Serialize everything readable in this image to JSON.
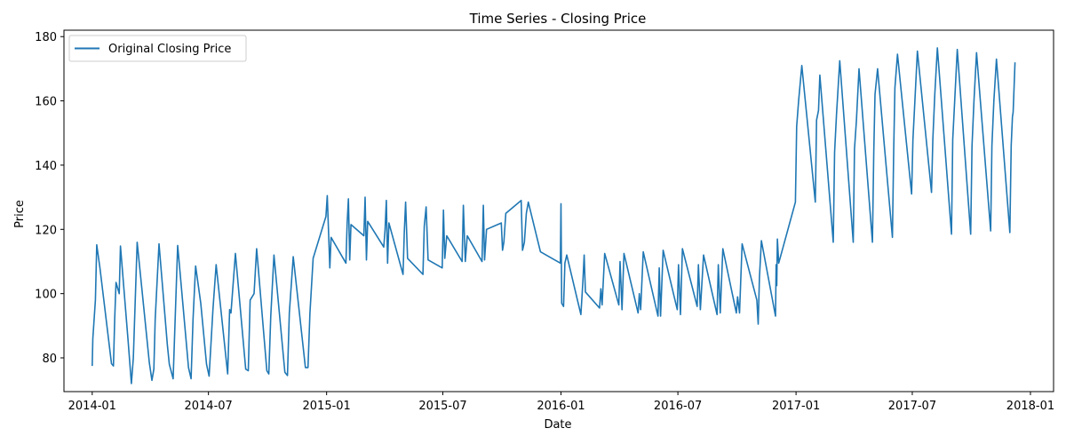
{
  "chart_data": {
    "type": "line",
    "title": "Time Series - Closing Price",
    "xlabel": "Date",
    "ylabel": "Price",
    "xlim": [
      "2013-11-18",
      "2018-02-06"
    ],
    "ylim": [
      69.5,
      182
    ],
    "x_ticks": [
      "2014-01",
      "2014-07",
      "2015-01",
      "2015-07",
      "2016-01",
      "2016-07",
      "2017-01",
      "2017-07",
      "2018-01"
    ],
    "y_ticks": [
      80,
      100,
      120,
      140,
      160,
      180
    ],
    "grid": false,
    "legend_position": "upper-left",
    "series": [
      {
        "name": "Original Closing Price",
        "color": "#1f77b4",
        "x": [
          "2014-01-01",
          "2014-01-02",
          "2014-01-06",
          "2014-01-08",
          "2014-01-13",
          "2014-01-31",
          "2014-02-03",
          "2014-02-05",
          "2014-02-07",
          "2014-02-12",
          "2014-02-14",
          "2014-02-26",
          "2014-03-03",
          "2014-03-06",
          "2014-03-12",
          "2014-03-31",
          "2014-04-04",
          "2014-04-07",
          "2014-04-09",
          "2014-04-15",
          "2014-04-28",
          "2014-05-01",
          "2014-05-07",
          "2014-05-14",
          "2014-05-31",
          "2014-06-04",
          "2014-06-07",
          "2014-06-11",
          "2014-06-19",
          "2014-06-28",
          "2014-07-02",
          "2014-07-08",
          "2014-07-13",
          "2014-07-31",
          "2014-08-03",
          "2014-08-05",
          "2014-08-12",
          "2014-08-28",
          "2014-09-01",
          "2014-09-04",
          "2014-09-10",
          "2014-09-14",
          "2014-09-30",
          "2014-10-03",
          "2014-10-06",
          "2014-10-11",
          "2014-10-28",
          "2014-11-01",
          "2014-11-04",
          "2014-11-10",
          "2014-11-29",
          "2014-12-03",
          "2014-12-06",
          "2014-12-11",
          "2014-12-31",
          "2015-01-02",
          "2015-01-06",
          "2015-01-08",
          "2015-01-31",
          "2015-02-02",
          "2015-02-04",
          "2015-02-06",
          "2015-02-08",
          "2015-02-28",
          "2015-03-02",
          "2015-03-04",
          "2015-03-06",
          "2015-03-31",
          "2015-04-02",
          "2015-04-04",
          "2015-04-06",
          "2015-04-08",
          "2015-04-30",
          "2015-05-02",
          "2015-05-04",
          "2015-05-07",
          "2015-05-31",
          "2015-06-02",
          "2015-06-05",
          "2015-06-08",
          "2015-06-30",
          "2015-07-02",
          "2015-07-04",
          "2015-07-07",
          "2015-07-31",
          "2015-08-02",
          "2015-08-05",
          "2015-08-08",
          "2015-08-31",
          "2015-09-02",
          "2015-09-04",
          "2015-09-07",
          "2015-09-30",
          "2015-10-02",
          "2015-10-04",
          "2015-10-07",
          "2015-10-31",
          "2015-11-02",
          "2015-11-05",
          "2015-11-08",
          "2015-11-11",
          "2015-11-30",
          "2015-12-31",
          "2016-01-01",
          "2016-01-02",
          "2016-01-05",
          "2016-01-07",
          "2016-01-10",
          "2016-02-01",
          "2016-02-04",
          "2016-02-06",
          "2016-02-08",
          "2016-03-01",
          "2016-03-03",
          "2016-03-05",
          "2016-03-09",
          "2016-03-31",
          "2016-04-02",
          "2016-04-05",
          "2016-04-08",
          "2016-04-30",
          "2016-05-02",
          "2016-05-04",
          "2016-05-08",
          "2016-05-31",
          "2016-06-02",
          "2016-06-04",
          "2016-06-08",
          "2016-06-30",
          "2016-07-02",
          "2016-07-05",
          "2016-07-08",
          "2016-07-31",
          "2016-08-02",
          "2016-08-05",
          "2016-08-10",
          "2016-08-31",
          "2016-09-02",
          "2016-09-05",
          "2016-09-09",
          "2016-09-30",
          "2016-10-02",
          "2016-10-05",
          "2016-10-09",
          "2016-11-01",
          "2016-11-03",
          "2016-11-05",
          "2016-11-08",
          "2016-11-30",
          "2016-12-01",
          "2016-12-02",
          "2016-12-03",
          "2016-12-05",
          "2016-12-31",
          "2017-01-02",
          "2017-01-05",
          "2017-01-10",
          "2017-01-31",
          "2017-02-02",
          "2017-02-05",
          "2017-02-07",
          "2017-02-28",
          "2017-03-02",
          "2017-03-05",
          "2017-03-10",
          "2017-03-31",
          "2017-04-02",
          "2017-04-05",
          "2017-04-09",
          "2017-04-30",
          "2017-05-02",
          "2017-05-04",
          "2017-05-08",
          "2017-05-31",
          "2017-06-02",
          "2017-06-04",
          "2017-06-08",
          "2017-06-30",
          "2017-07-02",
          "2017-07-05",
          "2017-07-09",
          "2017-07-31",
          "2017-08-02",
          "2017-08-05",
          "2017-08-09",
          "2017-08-31",
          "2017-09-02",
          "2017-09-05",
          "2017-09-09",
          "2017-09-30",
          "2017-10-02",
          "2017-10-05",
          "2017-10-09",
          "2017-10-31",
          "2017-11-02",
          "2017-11-05",
          "2017-11-09",
          "2017-11-30",
          "2017-12-02",
          "2017-12-04",
          "2017-12-05",
          "2017-12-08"
        ],
        "y": [
          77.5,
          86,
          98,
          115.2,
          108,
          78.2,
          77.5,
          92,
          103.5,
          100,
          114.8,
          85,
          72,
          80,
          116,
          78.5,
          73,
          76.5,
          92,
          115.5,
          84,
          78,
          73.5,
          115,
          77,
          73.5,
          92,
          108.6,
          97,
          78,
          74.3,
          95,
          109,
          75,
          95,
          94,
          112.5,
          76.5,
          76,
          98,
          100,
          114,
          76,
          75,
          93,
          112,
          75.5,
          74.5,
          94,
          111.5,
          77,
          77,
          94,
          111,
          124,
          130.5,
          108,
          117.5,
          109.5,
          122,
          129.5,
          110.5,
          121.5,
          118,
          130,
          110.5,
          122.5,
          114.5,
          120,
          129,
          109.5,
          122,
          106,
          119,
          128.5,
          111,
          106,
          121,
          127,
          110.5,
          108,
          126,
          111,
          118,
          110,
          127.5,
          110,
          118,
          110,
          127.5,
          110.5,
          120,
          122,
          113.5,
          116,
          125,
          129,
          113.5,
          116,
          125,
          128.5,
          113,
          109.5,
          128,
          97,
          96,
          109.5,
          112,
          93.5,
          103.5,
          112,
          100.5,
          95.5,
          101.5,
          96.5,
          112.5,
          96.5,
          110,
          95,
          112.5,
          94,
          100,
          95,
          113,
          93,
          108,
          93,
          113.5,
          95,
          109,
          93.5,
          114,
          96,
          109,
          95,
          112,
          93.5,
          109,
          94,
          114,
          94,
          99,
          94,
          115.5,
          98,
          90.5,
          105,
          116.5,
          93,
          109,
          102.5,
          117,
          109.5,
          128.5,
          152,
          160,
          171,
          128.5,
          154,
          157,
          168,
          116,
          144,
          156,
          172.5,
          116,
          145,
          154,
          170,
          116,
          144,
          162,
          170,
          117.5,
          144,
          164,
          174.5,
          131,
          148,
          160,
          175.5,
          131.5,
          148,
          162,
          176.5,
          118.5,
          148,
          160,
          176,
          118.5,
          146,
          160,
          175,
          119.5,
          146,
          160,
          173,
          119,
          146,
          155,
          156.5,
          172
        ]
      }
    ]
  }
}
